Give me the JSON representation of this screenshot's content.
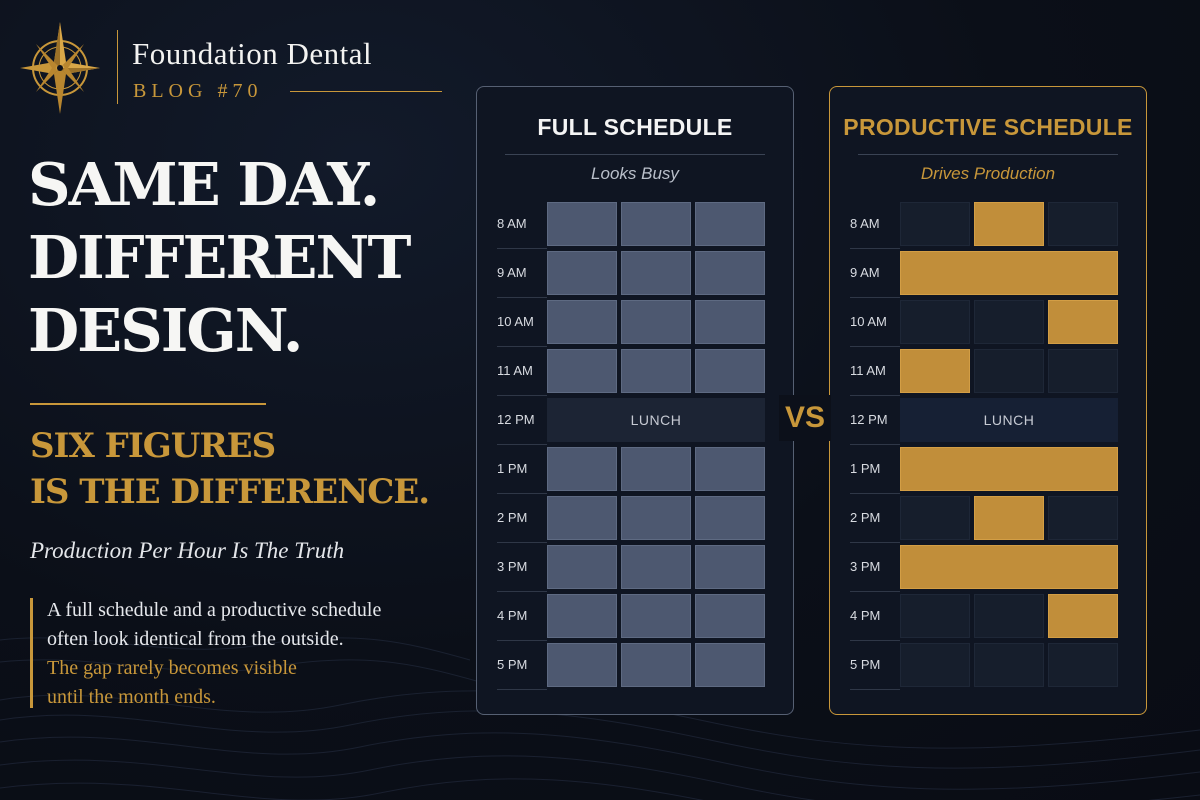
{
  "brand": {
    "name": "Foundation Dental",
    "sub": "BLOG #70",
    "logo": "compass-rose-logo"
  },
  "headline": [
    "SAME DAY.",
    "DIFFERENT",
    "DESIGN."
  ],
  "subhead": [
    "SIX FIGURES",
    "IS THE DIFFERENCE."
  ],
  "tagline": "Production Per Hour Is The Truth",
  "body": [
    {
      "text": "A full schedule and a productive schedule",
      "tone": "white"
    },
    {
      "text": "often look identical from the outside.",
      "tone": "white"
    },
    {
      "text": "The gap rarely becomes visible",
      "tone": "gold"
    },
    {
      "text": "until the month ends.",
      "tone": "gold"
    }
  ],
  "vs_label": "VS",
  "colors": {
    "gold": "#c8973a",
    "background": "#0c101a",
    "booked": "#4d5870",
    "open": "#161e2c",
    "productive": "#c18e3a"
  },
  "schedules": [
    {
      "key": "full",
      "title": "FULL SCHEDULE",
      "subtitle": "Looks Busy",
      "lunch_label": "LUNCH",
      "rows": [
        {
          "time": "8 AM",
          "slots": [
            1,
            1,
            1
          ]
        },
        {
          "time": "9 AM",
          "slots": [
            1,
            1,
            1
          ]
        },
        {
          "time": "10 AM",
          "slots": [
            1,
            1,
            1
          ]
        },
        {
          "time": "11 AM",
          "slots": [
            1,
            1,
            1
          ]
        },
        {
          "time": "12 PM",
          "lunch": true
        },
        {
          "time": "1 PM",
          "slots": [
            1,
            1,
            1
          ]
        },
        {
          "time": "2 PM",
          "slots": [
            1,
            1,
            1
          ]
        },
        {
          "time": "3 PM",
          "slots": [
            1,
            1,
            1
          ]
        },
        {
          "time": "4 PM",
          "slots": [
            1,
            1,
            1
          ]
        },
        {
          "time": "5 PM",
          "slots": [
            1,
            1,
            1
          ]
        }
      ]
    },
    {
      "key": "prod",
      "title": "PRODUCTIVE SCHEDULE",
      "subtitle": "Drives Production",
      "lunch_label": "LUNCH",
      "rows": [
        {
          "time": "8 AM",
          "slots": [
            0,
            1,
            0
          ]
        },
        {
          "time": "9 AM",
          "slots": [
            1,
            1,
            1
          ],
          "merged": true
        },
        {
          "time": "10 AM",
          "slots": [
            0,
            0,
            1
          ]
        },
        {
          "time": "11 AM",
          "slots": [
            1,
            0,
            0
          ]
        },
        {
          "time": "12 PM",
          "lunch": true
        },
        {
          "time": "1 PM",
          "slots": [
            1,
            1,
            1
          ],
          "merged": true
        },
        {
          "time": "2 PM",
          "slots": [
            0,
            1,
            0
          ]
        },
        {
          "time": "3 PM",
          "slots": [
            1,
            1,
            1
          ],
          "merged": true
        },
        {
          "time": "4 PM",
          "slots": [
            0,
            0,
            1
          ]
        },
        {
          "time": "5 PM",
          "slots": [
            0,
            0,
            0
          ]
        }
      ]
    }
  ]
}
